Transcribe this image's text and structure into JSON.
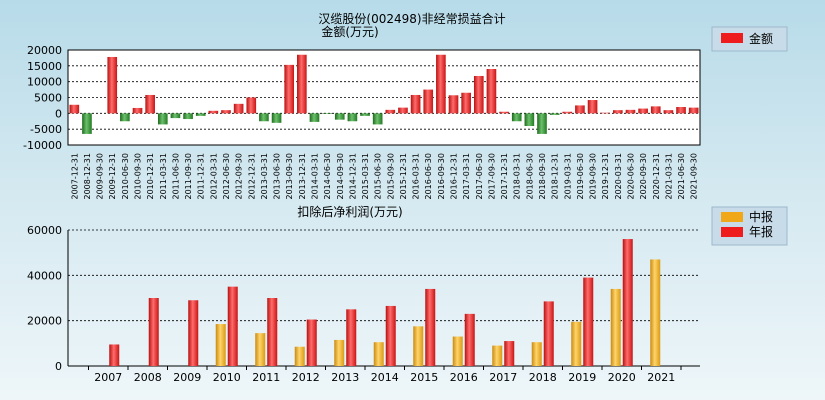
{
  "chart_data": [
    {
      "type": "bar",
      "title": "汉缆股份(002498)非经常损益合计",
      "subtitle": "金额(万元)",
      "ylim": [
        -10000,
        20000
      ],
      "yticks": [
        "20000",
        "15000",
        "10000",
        "5000",
        "0",
        "-5000",
        "-10000"
      ],
      "grid": true,
      "legend": {
        "position": "top-right",
        "entries": [
          "金额"
        ]
      },
      "colors": {
        "positive": "#ee1c1c",
        "negative": "#2f8f2f"
      },
      "categories": [
        "2007-12-31",
        "2008-12-31",
        "2009-09-30",
        "2009-12-31",
        "2010-06-30",
        "2010-09-30",
        "2010-12-31",
        "2011-03-31",
        "2011-06-30",
        "2011-09-30",
        "2011-12-31",
        "2012-03-31",
        "2012-06-30",
        "2012-09-30",
        "2012-12-31",
        "2013-03-31",
        "2013-06-30",
        "2013-09-30",
        "2013-12-31",
        "2014-03-31",
        "2014-06-30",
        "2014-09-30",
        "2014-12-31",
        "2015-03-31",
        "2015-06-30",
        "2015-09-30",
        "2015-12-31",
        "2016-03-31",
        "2016-06-30",
        "2016-09-30",
        "2016-12-31",
        "2017-03-31",
        "2017-06-30",
        "2017-09-30",
        "2017-12-31",
        "2018-03-31",
        "2018-06-30",
        "2018-09-30",
        "2018-12-31",
        "2019-03-31",
        "2019-06-30",
        "2019-09-30",
        "2019-12-31",
        "2020-03-31",
        "2020-06-30",
        "2020-09-30",
        "2020-12-31",
        "2021-03-31",
        "2021-06-30",
        "2021-09-30"
      ],
      "values": [
        2700,
        -6500,
        0,
        17800,
        -2500,
        1700,
        5800,
        -3500,
        -1500,
        -1800,
        -800,
        800,
        1000,
        3000,
        5000,
        -2500,
        -3000,
        15300,
        18500,
        -2700,
        -200,
        -2000,
        -2500,
        -800,
        -3500,
        1100,
        1800,
        5800,
        7500,
        18500,
        5700,
        6500,
        11800,
        14000,
        500,
        -2500,
        -4000,
        -6500,
        -500,
        500,
        2500,
        4200,
        200,
        1000,
        1100,
        1500,
        2200,
        1000,
        2000,
        1800
      ]
    },
    {
      "type": "bar",
      "title": "扣除后净利润(万元)",
      "ylim": [
        0,
        60000
      ],
      "yticks": [
        "60000",
        "40000",
        "20000",
        "0"
      ],
      "grid": true,
      "legend": {
        "position": "top-right",
        "entries": [
          "中报",
          "年报"
        ]
      },
      "colors": {
        "interim": "#f0a818",
        "annual": "#ee1c1c"
      },
      "categories": [
        "2007",
        "2008",
        "2009",
        "2010",
        "2011",
        "2012",
        "2013",
        "2014",
        "2015",
        "2016",
        "2017",
        "2018",
        "2019",
        "2020",
        "2021"
      ],
      "series": [
        {
          "name": "中报",
          "values": [
            null,
            null,
            null,
            18500,
            14500,
            8500,
            11500,
            10500,
            17500,
            13000,
            9000,
            10500,
            19500,
            34000,
            47000
          ]
        },
        {
          "name": "年报",
          "values": [
            9500,
            30000,
            29000,
            35000,
            30000,
            20500,
            25000,
            26500,
            34000,
            23000,
            11000,
            28500,
            39000,
            56000,
            null
          ]
        }
      ]
    }
  ]
}
